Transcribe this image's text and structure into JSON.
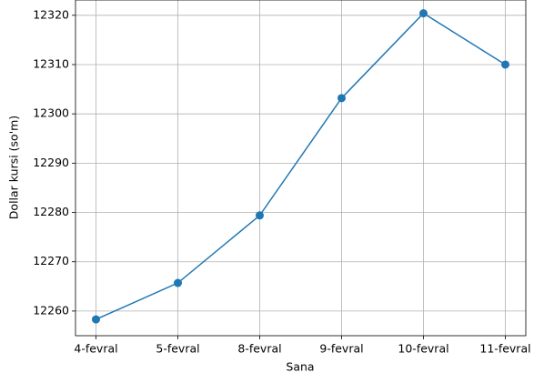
{
  "chart_data": {
    "type": "line",
    "x_label": "Sana",
    "y_label": "Dollar kursi (so'm)",
    "categories": [
      "4-fevral",
      "5-fevral",
      "8-fevral",
      "9-fevral",
      "10-fevral",
      "11-fevral"
    ],
    "series": [
      {
        "name": "Dollar kursi",
        "color": "#1f77b4",
        "values": [
          12258.3,
          12265.7,
          12279.4,
          12303.2,
          12320.4,
          12310.0
        ]
      }
    ],
    "ylim": [
      12255.0,
      12323.1
    ],
    "yticks": [
      12260,
      12270,
      12280,
      12290,
      12300,
      12310,
      12320
    ],
    "grid": true,
    "markers": true
  }
}
